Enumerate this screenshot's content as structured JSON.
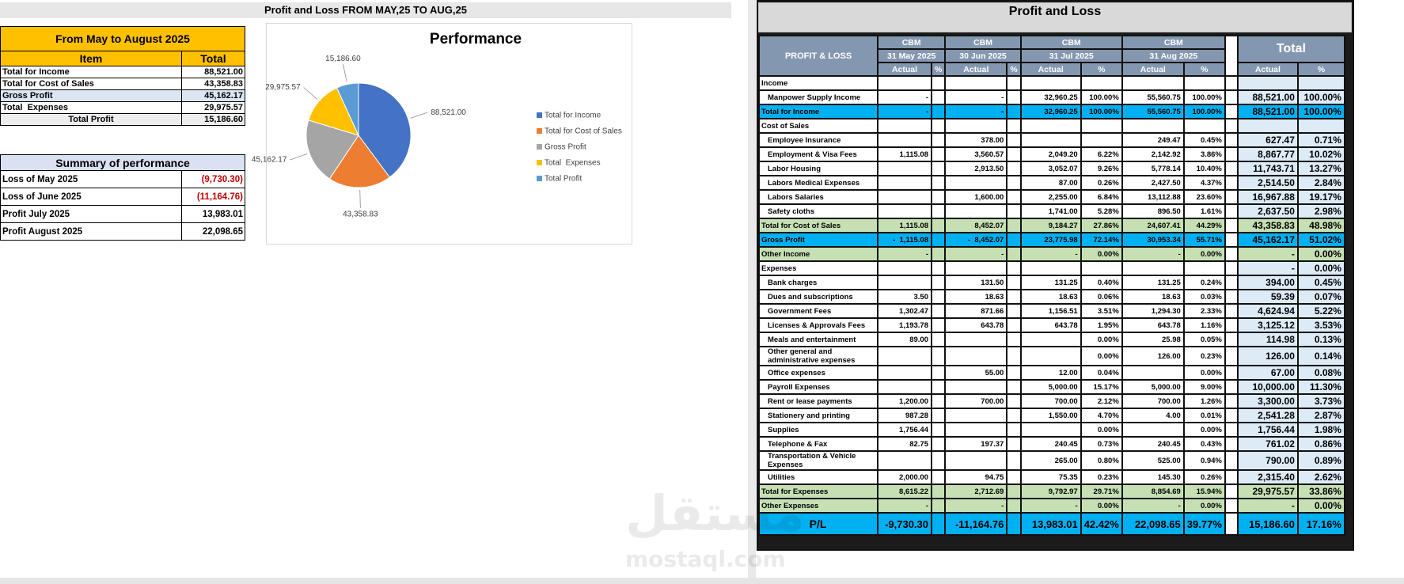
{
  "page_title": "Profit and Loss FROM MAY,25 TO AUG,25",
  "summary_table": {
    "header": "From May to August 2025",
    "columns": [
      "Item",
      "Total"
    ],
    "rows": [
      {
        "item": "Total for Income",
        "total": "88,521.00",
        "style": "plain"
      },
      {
        "item": "Total for Cost of Sales",
        "total": "43,358.83",
        "style": "plain"
      },
      {
        "item": "Gross Profit",
        "total": "45,162.17",
        "style": "highlight"
      },
      {
        "item": "Total  Expenses",
        "total": "29,975.57",
        "style": "plain"
      },
      {
        "item": "Total Profit",
        "total": "15,186.60",
        "style": "total"
      }
    ]
  },
  "performance_table": {
    "header": "Summary of performance",
    "rows": [
      {
        "item": "Loss of May 2025",
        "total": "(9,730.30)",
        "negative": true
      },
      {
        "item": "Loss of June 2025",
        "total": "(11,164.76)",
        "negative": true
      },
      {
        "item": "Profit July 2025",
        "total": "13,983.01",
        "negative": false
      },
      {
        "item": "Profit August 2025",
        "total": "22,098.65",
        "negative": false
      }
    ]
  },
  "chart_data": {
    "type": "pie",
    "title": "Performance",
    "categories": [
      "Total for Income",
      "Total for Cost of Sales",
      "Gross Profit",
      "Total  Expenses",
      "Total Profit"
    ],
    "values": [
      88521.0,
      43358.83,
      45162.17,
      29975.57,
      15186.6
    ],
    "value_labels": [
      "88,521.00",
      "43,358.83",
      "45,162.17",
      "29,975.57",
      "15,186.60"
    ],
    "colors": [
      "#4472c4",
      "#ed7d31",
      "#a5a5a5",
      "#ffc000",
      "#5b9bd5"
    ],
    "legend": "right"
  },
  "pl_table": {
    "title": "Profit and Loss",
    "corner": "PROFIT & LOSS",
    "periods": [
      {
        "entity": "CBM",
        "date": "31 May 2025",
        "actual": "Actual",
        "pct": "%"
      },
      {
        "entity": "CBM",
        "date": "30 Jun 2025",
        "actual": "Actual",
        "pct": "%"
      },
      {
        "entity": "CBM",
        "date": "31 Jul 2025",
        "actual": "Actual",
        "pct": "%"
      },
      {
        "entity": "CBM",
        "date": "31 Aug 2025",
        "actual": "Actual",
        "pct": "%"
      }
    ],
    "total": {
      "title": "Total",
      "actual": "Actual",
      "pct": "%"
    },
    "rows": [
      {
        "label": "Income",
        "style": "section",
        "cells": [
          null,
          null,
          null,
          null,
          null,
          null,
          null,
          null,
          null,
          null
        ]
      },
      {
        "label": "Manpower Supply Income",
        "style": "item",
        "cells": [
          "-",
          null,
          "-",
          null,
          "32,960.25",
          "100.00%",
          "55,560.75",
          "100.00%",
          "88,521.00",
          "100.00%"
        ]
      },
      {
        "label": "Total for Income",
        "style": "blue",
        "cells": [
          "-",
          null,
          "-",
          null,
          "32,960.25",
          "100.00%",
          "55,560.75",
          "100.00%",
          "88,521.00",
          "100.00%"
        ]
      },
      {
        "label": "Cost of Sales",
        "style": "section",
        "cells": [
          null,
          null,
          null,
          null,
          null,
          null,
          null,
          null,
          null,
          null
        ]
      },
      {
        "label": "Employee Insurance",
        "style": "item",
        "cells": [
          null,
          null,
          "378.00",
          null,
          null,
          null,
          "249.47",
          "0.45%",
          "627.47",
          "0.71%"
        ]
      },
      {
        "label": "Employment & Visa Fees",
        "style": "item",
        "cells": [
          "1,115.08",
          null,
          "3,560.57",
          null,
          "2,049.20",
          "6.22%",
          "2,142.92",
          "3.86%",
          "8,867.77",
          "10.02%"
        ]
      },
      {
        "label": "Labor Housing",
        "style": "item",
        "cells": [
          null,
          null,
          "2,913.50",
          null,
          "3,052.07",
          "9.26%",
          "5,778.14",
          "10.40%",
          "11,743.71",
          "13.27%"
        ]
      },
      {
        "label": "Labors Medical Expenses",
        "style": "item",
        "cells": [
          null,
          null,
          null,
          null,
          "87.00",
          "0.26%",
          "2,427.50",
          "4.37%",
          "2,514.50",
          "2.84%"
        ]
      },
      {
        "label": "Labors Salaries",
        "style": "item",
        "cells": [
          null,
          null,
          "1,600.00",
          null,
          "2,255.00",
          "6.84%",
          "13,112.88",
          "23.60%",
          "16,967.88",
          "19.17%"
        ]
      },
      {
        "label": "Safety cloths",
        "style": "item",
        "cells": [
          null,
          null,
          null,
          null,
          "1,741.00",
          "5.28%",
          "896.50",
          "1.61%",
          "2,637.50",
          "2.98%"
        ]
      },
      {
        "label": "Total for Cost of Sales",
        "style": "green",
        "cells": [
          "1,115.08",
          null,
          "8,452.07",
          null,
          "9,184.27",
          "27.86%",
          "24,607.41",
          "44.29%",
          "43,358.83",
          "48.98%"
        ]
      },
      {
        "label": "Gross Profit",
        "style": "blue",
        "cells": [
          "-  1,115.08",
          null,
          "-  8,452.07",
          null,
          "23,775.98",
          "72.14%",
          "30,953.34",
          "55.71%",
          "45,162.17",
          "51.02%"
        ]
      },
      {
        "label": "Other Income",
        "style": "green",
        "cells": [
          "-",
          null,
          "-",
          null,
          "-",
          "0.00%",
          "-",
          "0.00%",
          "-",
          "0.00%"
        ]
      },
      {
        "label": "Expenses",
        "style": "section",
        "cells": [
          null,
          null,
          null,
          null,
          null,
          null,
          null,
          null,
          "-",
          "0.00%"
        ]
      },
      {
        "label": "Bank charges",
        "style": "item",
        "cells": [
          null,
          null,
          "131.50",
          null,
          "131.25",
          "0.40%",
          "131.25",
          "0.24%",
          "394.00",
          "0.45%"
        ]
      },
      {
        "label": "Dues and subscriptions",
        "style": "item",
        "cells": [
          "3.50",
          null,
          "18.63",
          null,
          "18.63",
          "0.06%",
          "18.63",
          "0.03%",
          "59.39",
          "0.07%"
        ]
      },
      {
        "label": "Government Fees",
        "style": "item",
        "cells": [
          "1,302.47",
          null,
          "871.66",
          null,
          "1,156.51",
          "3.51%",
          "1,294.30",
          "2.33%",
          "4,624.94",
          "5.22%"
        ]
      },
      {
        "label": "Licenses & Approvals Fees",
        "style": "item",
        "cells": [
          "1,193.78",
          null,
          "643.78",
          null,
          "643.78",
          "1.95%",
          "643.78",
          "1.16%",
          "3,125.12",
          "3.53%"
        ]
      },
      {
        "label": "Meals and entertainment",
        "style": "item",
        "cells": [
          "89.00",
          null,
          null,
          null,
          null,
          "0.00%",
          "25.98",
          "0.05%",
          "114.98",
          "0.13%"
        ]
      },
      {
        "label": "Other general and administrative expenses",
        "style": "item",
        "cells": [
          null,
          null,
          null,
          null,
          null,
          "0.00%",
          "126.00",
          "0.23%",
          "126.00",
          "0.14%"
        ]
      },
      {
        "label": "Office expenses",
        "style": "item",
        "cells": [
          null,
          null,
          "55.00",
          null,
          "12.00",
          "0.04%",
          null,
          "0.00%",
          "67.00",
          "0.08%"
        ]
      },
      {
        "label": "Payroll Expenses",
        "style": "item",
        "cells": [
          null,
          null,
          null,
          null,
          "5,000.00",
          "15.17%",
          "5,000.00",
          "9.00%",
          "10,000.00",
          "11.30%"
        ]
      },
      {
        "label": "Rent or lease payments",
        "style": "item",
        "cells": [
          "1,200.00",
          null,
          "700.00",
          null,
          "700.00",
          "2.12%",
          "700.00",
          "1.26%",
          "3,300.00",
          "3.73%"
        ]
      },
      {
        "label": "Stationery and printing",
        "style": "item",
        "cells": [
          "987.28",
          null,
          null,
          null,
          "1,550.00",
          "4.70%",
          "4.00",
          "0.01%",
          "2,541.28",
          "2.87%"
        ]
      },
      {
        "label": "Supplies",
        "style": "item",
        "cells": [
          "1,756.44",
          null,
          null,
          null,
          null,
          "0.00%",
          null,
          "0.00%",
          "1,756.44",
          "1.98%"
        ]
      },
      {
        "label": "Telephone & Fax",
        "style": "item",
        "cells": [
          "82.75",
          null,
          "197.37",
          null,
          "240.45",
          "0.73%",
          "240.45",
          "0.43%",
          "761.02",
          "0.86%"
        ]
      },
      {
        "label": "Transportation & Vehicle Expenses",
        "style": "item",
        "cells": [
          null,
          null,
          null,
          null,
          "265.00",
          "0.80%",
          "525.00",
          "0.94%",
          "790.00",
          "0.89%"
        ]
      },
      {
        "label": "Utilities",
        "style": "item",
        "cells": [
          "2,000.00",
          null,
          "94.75",
          null,
          "75.35",
          "0.23%",
          "145.30",
          "0.26%",
          "2,315.40",
          "2.62%"
        ]
      },
      {
        "label": "Total for Expenses",
        "style": "green",
        "cells": [
          "8,615.22",
          null,
          "2,712.69",
          null,
          "9,792.97",
          "29.71%",
          "8,854.69",
          "15.94%",
          "29,975.57",
          "33.86%"
        ]
      },
      {
        "label": "Other Expenses",
        "style": "green",
        "cells": [
          "-",
          null,
          "-",
          null,
          "-",
          "0.00%",
          "-",
          "0.00%",
          "-",
          "0.00%"
        ]
      },
      {
        "label": "P/L",
        "style": "pl",
        "cells": [
          "-9,730.30",
          null,
          "-11,164.76",
          null,
          "13,983.01",
          "42.42%",
          "22,098.65",
          "39.77%",
          "15,186.60",
          "17.16%"
        ]
      }
    ]
  },
  "watermark": {
    "brand_arabic": "مستقل",
    "brand_latin": "mostaql.com"
  }
}
